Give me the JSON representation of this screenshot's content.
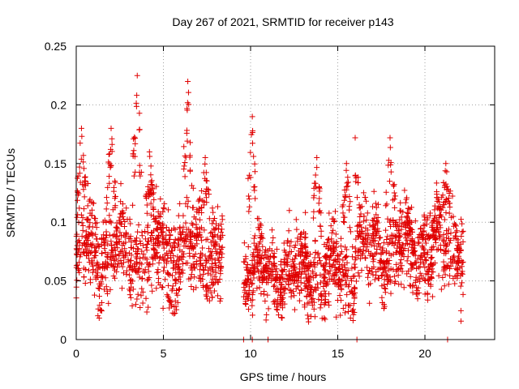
{
  "chart_data": {
    "type": "scatter",
    "title": "Day 267 of 2021, SRMTID for receiver p143",
    "xlabel": "GPS time / hours",
    "ylabel": "SRMTID / TECUs",
    "xlim": [
      0,
      24
    ],
    "ylim": [
      0,
      0.25
    ],
    "x_ticks": [
      0,
      5,
      10,
      15,
      20
    ],
    "y_ticks": [
      0,
      0.05,
      0.1,
      0.15,
      0.2,
      0.25
    ],
    "x_tick_labels": [
      "0",
      "5",
      "10",
      "15",
      "20"
    ],
    "y_tick_labels": [
      "0",
      "0.05",
      "0.1",
      "0.15",
      "0.2",
      "0.25"
    ],
    "grid": true,
    "grid_style": "dotted",
    "marker": "plus",
    "color": "#e00000",
    "series": [
      {
        "name": "SRMTID",
        "description_segments": [
          {
            "x_range": [
              0.0,
              8.4
            ],
            "mean": 0.075,
            "spread": 0.035,
            "peaks": [
              [
                0.3,
                0.18
              ],
              [
                2.0,
                0.18
              ],
              [
                3.5,
                0.225
              ],
              [
                6.4,
                0.22
              ],
              [
                4.2,
                0.16
              ],
              [
                7.4,
                0.155
              ]
            ]
          },
          {
            "x_range": [
              9.6,
              16.0
            ],
            "mean": 0.058,
            "spread": 0.03,
            "peaks": [
              [
                10.1,
                0.19
              ],
              [
                13.8,
                0.155
              ],
              [
                15.5,
                0.15
              ]
            ]
          },
          {
            "x_range": [
              16.0,
              22.2
            ],
            "mean": 0.078,
            "spread": 0.032,
            "peaks": [
              [
                16.0,
                0.172
              ],
              [
                18.0,
                0.172
              ],
              [
                21.2,
                0.15
              ]
            ]
          }
        ],
        "low_points": [
          [
            9.6,
            0.0
          ],
          [
            10.1,
            0.0
          ],
          [
            11.0,
            0.0
          ],
          [
            16.1,
            0.0
          ],
          [
            21.3,
            0.0
          ]
        ]
      }
    ]
  }
}
